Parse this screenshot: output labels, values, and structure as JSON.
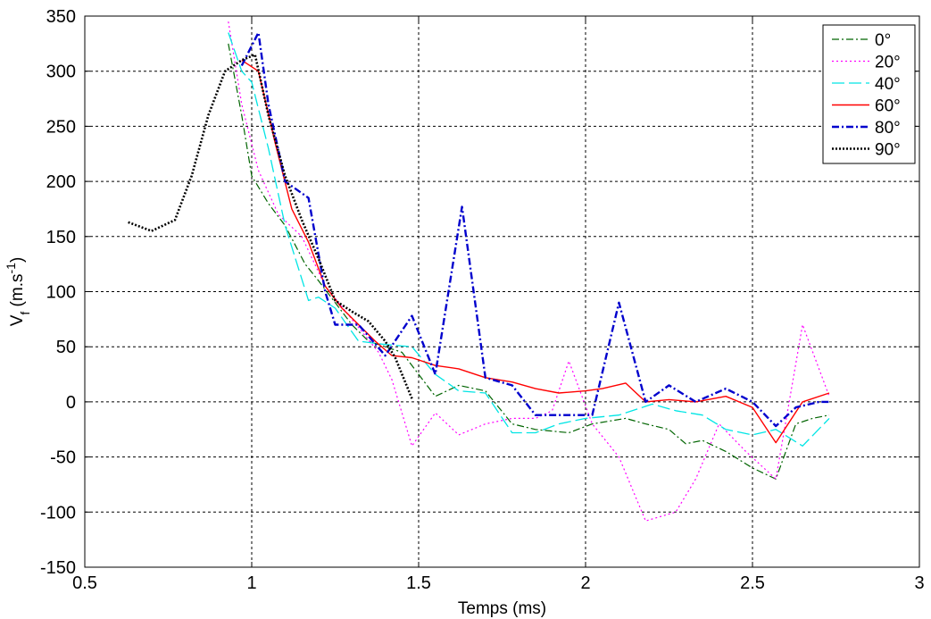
{
  "chart_data": {
    "type": "line",
    "title": "",
    "xlabel": "Temps (ms)",
    "ylabel": {
      "main": "V",
      "sub": "f",
      "unit_pre": " (m.s",
      "sup": "-1",
      "unit_post": ")"
    },
    "xlim": [
      0.5,
      3
    ],
    "ylim": [
      -150,
      350
    ],
    "xticks": [
      "0.5",
      "1",
      "1.5",
      "2",
      "2.5",
      "3"
    ],
    "xtick_values": [
      0.5,
      1,
      1.5,
      2,
      2.5,
      3
    ],
    "yticks": [
      "-150",
      "-100",
      "-50",
      "0",
      "50",
      "100",
      "150",
      "200",
      "250",
      "300",
      "350"
    ],
    "ytick_values": [
      -150,
      -100,
      -50,
      0,
      50,
      100,
      150,
      200,
      250,
      300,
      350
    ],
    "grid": true,
    "legend_position": "top-right",
    "series": [
      {
        "name": "0°",
        "color": "#006400",
        "style": "dashdot",
        "x": [
          0.93,
          0.97,
          1.0,
          1.05,
          1.1,
          1.16,
          1.2,
          1.25,
          1.3,
          1.35,
          1.4,
          1.45,
          1.5,
          1.55,
          1.62,
          1.7,
          1.78,
          1.85,
          1.95,
          2.02,
          2.12,
          2.18,
          2.25,
          2.3,
          2.35,
          2.42,
          2.5,
          2.57,
          2.63,
          2.68,
          2.73
        ],
        "y": [
          325,
          260,
          205,
          180,
          160,
          125,
          110,
          90,
          70,
          55,
          50,
          45,
          25,
          5,
          15,
          10,
          -20,
          -25,
          -28,
          -20,
          -15,
          -20,
          -25,
          -38,
          -35,
          -45,
          -60,
          -70,
          -20,
          -15,
          -12
        ]
      },
      {
        "name": "20°",
        "color": "#ff00ff",
        "style": "dotted",
        "x": [
          0.93,
          0.97,
          1.02,
          1.08,
          1.15,
          1.22,
          1.3,
          1.38,
          1.42,
          1.48,
          1.55,
          1.62,
          1.7,
          1.78,
          1.85,
          1.9,
          1.95,
          2.02,
          2.1,
          2.18,
          2.27,
          2.33,
          2.4,
          2.48,
          2.57,
          2.65,
          2.73
        ],
        "y": [
          345,
          270,
          210,
          170,
          150,
          105,
          75,
          45,
          20,
          -40,
          -10,
          -30,
          -20,
          -15,
          -15,
          -8,
          37,
          -20,
          -50,
          -108,
          -100,
          -70,
          -20,
          -45,
          -70,
          70,
          5
        ]
      },
      {
        "name": "40°",
        "color": "#00e5e5",
        "style": "longdash",
        "x": [
          0.93,
          0.97,
          1.0,
          1.05,
          1.1,
          1.17,
          1.2,
          1.25,
          1.32,
          1.4,
          1.48,
          1.55,
          1.62,
          1.7,
          1.78,
          1.85,
          1.92,
          2.0,
          2.1,
          2.2,
          2.27,
          2.35,
          2.42,
          2.5,
          2.57,
          2.65,
          2.73
        ],
        "y": [
          335,
          300,
          290,
          230,
          160,
          92,
          95,
          85,
          55,
          52,
          50,
          25,
          10,
          8,
          -28,
          -28,
          -20,
          -15,
          -12,
          -2,
          -8,
          -12,
          -25,
          -30,
          -25,
          -40,
          -15
        ]
      },
      {
        "name": "60°",
        "color": "#ff0000",
        "style": "solid",
        "x": [
          0.97,
          1.02,
          1.07,
          1.12,
          1.17,
          1.22,
          1.27,
          1.32,
          1.37,
          1.42,
          1.48,
          1.55,
          1.62,
          1.7,
          1.78,
          1.85,
          1.92,
          2.0,
          2.05,
          2.12,
          2.18,
          2.25,
          2.33,
          2.42,
          2.5,
          2.57,
          2.65,
          2.73
        ],
        "y": [
          310,
          300,
          235,
          175,
          145,
          105,
          85,
          70,
          55,
          42,
          40,
          33,
          30,
          22,
          18,
          12,
          8,
          10,
          12,
          17,
          0,
          2,
          0,
          5,
          -5,
          -37,
          0,
          8
        ]
      },
      {
        "name": "80°",
        "color": "#0000cd",
        "style": "dashdot",
        "x": [
          0.97,
          1.02,
          1.05,
          1.1,
          1.17,
          1.22,
          1.25,
          1.32,
          1.4,
          1.48,
          1.55,
          1.63,
          1.7,
          1.78,
          1.85,
          1.9,
          2.02,
          2.1,
          2.18,
          2.25,
          2.33,
          2.42,
          2.5,
          2.57,
          2.63,
          2.7,
          2.73
        ],
        "y": [
          305,
          335,
          270,
          200,
          185,
          100,
          70,
          70,
          42,
          78,
          25,
          177,
          22,
          15,
          -12,
          -12,
          -12,
          90,
          0,
          15,
          0,
          12,
          0,
          -22,
          -5,
          0,
          0
        ]
      },
      {
        "name": "90°",
        "color": "#000000",
        "style": "densedot",
        "x": [
          0.63,
          0.7,
          0.77,
          0.82,
          0.87,
          0.92,
          0.97,
          1.01,
          1.05,
          1.1,
          1.15,
          1.2,
          1.25,
          1.3,
          1.35,
          1.4,
          1.43,
          1.48
        ],
        "y": [
          163,
          155,
          165,
          205,
          260,
          300,
          310,
          315,
          260,
          205,
          165,
          130,
          92,
          82,
          73,
          55,
          40,
          3
        ]
      }
    ]
  }
}
